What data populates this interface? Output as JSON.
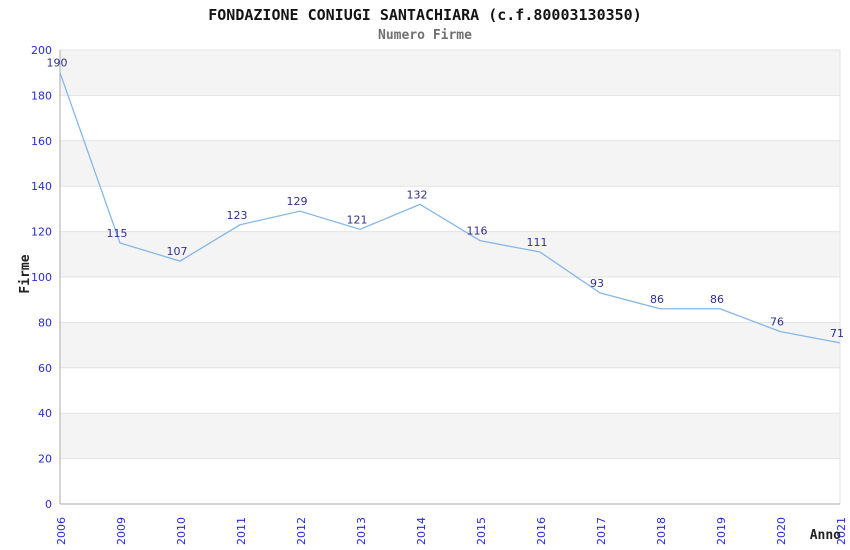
{
  "chart_data": {
    "type": "line",
    "title": "FONDAZIONE CONIUGI SANTACHIARA (c.f.80003130350)",
    "subtitle": "Numero Firme",
    "xlabel": "Anno",
    "ylabel": "Firme",
    "categories": [
      "2006",
      "2009",
      "2010",
      "2011",
      "2012",
      "2013",
      "2014",
      "2015",
      "2016",
      "2017",
      "2018",
      "2019",
      "2020",
      "2021"
    ],
    "values": [
      190,
      115,
      107,
      123,
      129,
      121,
      132,
      116,
      111,
      93,
      86,
      86,
      76,
      71
    ],
    "ylim": [
      0,
      200
    ],
    "ytick_step": 20,
    "legend": "none",
    "grid": "horizontal-bands-alternating",
    "colors": {
      "line": "#85b7e8",
      "tick_labels": "#2929d6",
      "point_labels": "#30308c",
      "band_fill": "#f4f4f4",
      "gridline": "#e2e2e2",
      "axis_line": "#ababab",
      "title": "#141414",
      "subtitle": "#707070",
      "axis_title": "#222222"
    }
  }
}
